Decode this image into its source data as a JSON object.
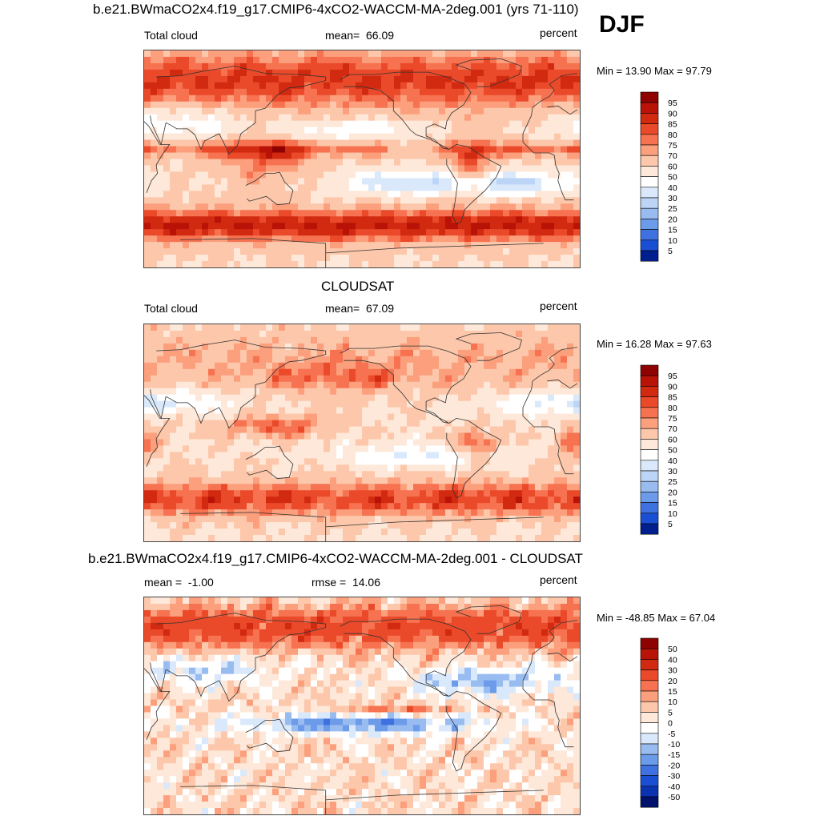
{
  "colors": {
    "pos": [
      "#fde8d9",
      "#fcc7aa",
      "#fb9f7c",
      "#f67250",
      "#ea4a2a",
      "#d22a10",
      "#b81306",
      "#8e0202"
    ],
    "neg": [
      "#d9e9fb",
      "#bcd5f6",
      "#98bbf0",
      "#6c9bea",
      "#3f72e0",
      "#1b4fd3",
      "#0b33b1",
      "#001f8f",
      "#00126c",
      "#000a55"
    ],
    "white": "#ffffff",
    "land": "#333333"
  },
  "chart_data": [
    {
      "type": "heatmap",
      "id": "model",
      "title": "b.e21.BWmaCO2x4.f19_g17.CMIP6-4xCO2-WACCM-MA-2deg.001 (yrs 71-110)",
      "season": "DJF",
      "variable": "Total cloud",
      "mean_label": "mean=",
      "mean_value": "66.09",
      "units": "percent",
      "min_label": "Min =",
      "min_value": "13.90",
      "max_label": "Max =",
      "max_value": "97.79",
      "levels": [
        "95",
        "90",
        "85",
        "80",
        "75",
        "70",
        "60",
        "50",
        "40",
        "30",
        "25",
        "20",
        "15",
        "10",
        "5"
      ],
      "x_range": [
        -180,
        180
      ],
      "y_range": [
        -90,
        90
      ]
    },
    {
      "type": "heatmap",
      "id": "obs",
      "title": "CLOUDSAT",
      "variable": "Total cloud",
      "mean_label": "mean=",
      "mean_value": "67.09",
      "units": "percent",
      "min_label": "Min =",
      "min_value": "16.28",
      "max_label": "Max =",
      "max_value": "97.63",
      "levels": [
        "95",
        "90",
        "85",
        "80",
        "75",
        "70",
        "60",
        "50",
        "40",
        "30",
        "25",
        "20",
        "15",
        "10",
        "5"
      ],
      "x_range": [
        -180,
        180
      ],
      "y_range": [
        -90,
        90
      ]
    },
    {
      "type": "heatmap",
      "id": "diff",
      "title": "b.e21.BWmaCO2x4.f19_g17.CMIP6-4xCO2-WACCM-MA-2deg.001 - CLOUDSAT",
      "mean_label": "mean =",
      "mean_value": "-1.00",
      "rmse_label": "rmse =",
      "rmse_value": "14.06",
      "units": "percent",
      "min_label": "Min =",
      "min_value": "-48.85",
      "max_label": "Max =",
      "max_value": "67.04",
      "levels": [
        "50",
        "40",
        "30",
        "20",
        "15",
        "10",
        "5",
        "0",
        "-5",
        "-10",
        "-15",
        "-20",
        "-30",
        "-40",
        "-50"
      ],
      "x_range": [
        -180,
        180
      ],
      "y_range": [
        -90,
        90
      ]
    }
  ]
}
